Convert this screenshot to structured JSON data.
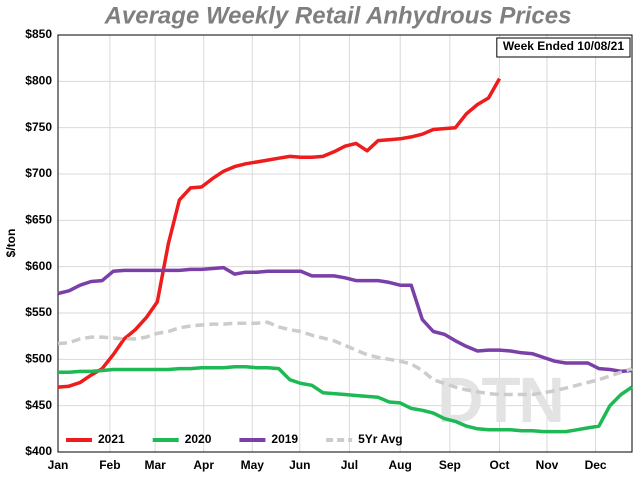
{
  "chart_data": {
    "type": "line",
    "title": "Average Weekly Retail Anhydrous Prices",
    "y_label": "$/ton",
    "annotation": "Week Ended 10/08/21",
    "watermark": "DTN",
    "x": [
      0,
      1,
      2,
      3,
      4,
      5,
      6,
      7,
      8,
      9,
      10,
      11,
      12,
      13,
      14,
      15,
      16,
      17,
      18,
      19,
      20,
      21,
      22,
      23,
      24,
      25,
      26,
      27,
      28,
      29,
      30,
      31,
      32,
      33,
      34,
      35,
      36,
      37,
      38,
      39,
      40,
      41,
      42,
      43,
      44,
      45,
      46,
      47,
      48,
      49,
      50,
      51,
      52
    ],
    "xlim": [
      0,
      52
    ],
    "xticks": [
      {
        "value": 0,
        "label": "Jan"
      },
      {
        "value": 4.7,
        "label": "Feb"
      },
      {
        "value": 8.8,
        "label": "Mar"
      },
      {
        "value": 13.2,
        "label": "Apr"
      },
      {
        "value": 17.6,
        "label": "May"
      },
      {
        "value": 21.9,
        "label": "Jun"
      },
      {
        "value": 26.4,
        "label": "Jul"
      },
      {
        "value": 31,
        "label": "Aug"
      },
      {
        "value": 35.5,
        "label": "Sep"
      },
      {
        "value": 40,
        "label": "Oct"
      },
      {
        "value": 44.3,
        "label": "Nov"
      },
      {
        "value": 48.7,
        "label": "Dec"
      }
    ],
    "ylim": [
      400,
      850
    ],
    "yticks": [
      {
        "value": 400,
        "label": "$400"
      },
      {
        "value": 450,
        "label": "$450"
      },
      {
        "value": 500,
        "label": "$500"
      },
      {
        "value": 550,
        "label": "$550"
      },
      {
        "value": 600,
        "label": "$600"
      },
      {
        "value": 650,
        "label": "$650"
      },
      {
        "value": 700,
        "label": "$700"
      },
      {
        "value": 750,
        "label": "$750"
      },
      {
        "value": 800,
        "label": "$800"
      },
      {
        "value": 850,
        "label": "$850"
      }
    ],
    "grid": true,
    "legend": "bottom-left",
    "series": [
      {
        "name": "2021",
        "color": "#ee1c1c",
        "dash": false,
        "values": [
          470,
          471,
          475,
          483,
          490,
          505,
          522,
          532,
          545,
          562,
          625,
          672,
          685,
          686,
          695,
          703,
          708,
          711,
          713,
          715,
          717,
          719,
          718,
          718,
          719,
          724,
          730,
          733,
          725,
          736,
          737,
          738,
          740,
          743,
          748,
          749,
          750,
          765,
          775,
          782,
          803,
          null,
          null,
          null,
          null,
          null,
          null,
          null,
          null,
          null,
          null,
          null,
          null
        ]
      },
      {
        "name": "2020",
        "color": "#1db954",
        "dash": false,
        "values": [
          486,
          486,
          487,
          487,
          488,
          489,
          489,
          489,
          489,
          489,
          489,
          490,
          490,
          491,
          491,
          491,
          492,
          492,
          491,
          491,
          490,
          478,
          474,
          472,
          464,
          463,
          462,
          461,
          460,
          459,
          454,
          453,
          447,
          445,
          442,
          436,
          433,
          428,
          425,
          424,
          424,
          424,
          423,
          423,
          422,
          422,
          422,
          424,
          426,
          428,
          450,
          462,
          470
        ]
      },
      {
        "name": "2019",
        "color": "#7b3fa8",
        "dash": false,
        "values": [
          571,
          574,
          580,
          584,
          585,
          595,
          596,
          596,
          596,
          596,
          596,
          596,
          597,
          597,
          598,
          599,
          592,
          594,
          594,
          595,
          595,
          595,
          595,
          590,
          590,
          590,
          588,
          585,
          585,
          585,
          583,
          580,
          580,
          543,
          530,
          527,
          520,
          514,
          509,
          510,
          510,
          509,
          507,
          506,
          502,
          498,
          496,
          496,
          496,
          490,
          489,
          487,
          488
        ]
      },
      {
        "name": "5Yr Avg",
        "color": "#cccccc",
        "dash": true,
        "values": [
          517,
          518,
          522,
          524,
          524,
          523,
          522,
          522,
          524,
          528,
          530,
          534,
          536,
          537,
          538,
          538,
          539,
          539,
          539,
          540,
          535,
          532,
          530,
          526,
          523,
          520,
          515,
          510,
          505,
          502,
          500,
          498,
          495,
          488,
          478,
          474,
          470,
          467,
          465,
          463,
          462,
          462,
          462,
          462,
          464,
          466,
          469,
          472,
          475,
          478,
          482,
          486,
          490
        ]
      }
    ]
  }
}
